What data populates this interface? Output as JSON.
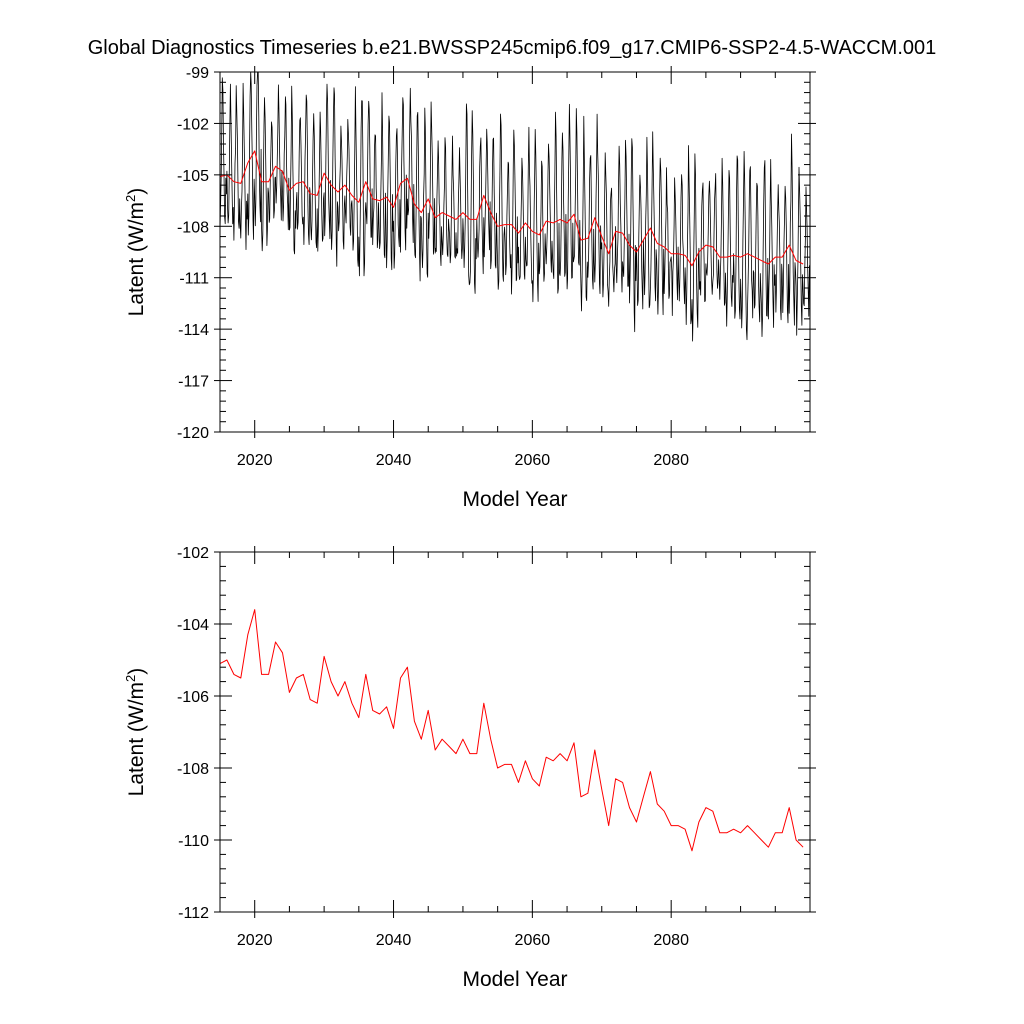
{
  "title": "Global Diagnostics Timeseries b.e21.BWSSP245cmip6.f09_g17.CMIP6-SSP2-4.5-WACCM.001",
  "colors": {
    "monthly": "#000000",
    "annual": "#ff0000",
    "frame": "#000000",
    "background": "#ffffff"
  },
  "chart_data": [
    {
      "type": "line",
      "xlabel": "Model Year",
      "ylabel": "Latent (W/m",
      "ylabel_superscript": "2",
      "ylabel_suffix": ")",
      "xlim": [
        2015,
        2100
      ],
      "ylim": [
        -120,
        -99
      ],
      "x_ticks": [
        2020,
        2040,
        2060,
        2080
      ],
      "x_tick_labels": [
        "2020",
        "2040",
        "2060",
        "2080"
      ],
      "y_ticks": [
        -99,
        -102,
        -105,
        -108,
        -111,
        -114,
        -117,
        -120
      ],
      "y_tick_labels": [
        "-99",
        "-102",
        "-105",
        "-108",
        "-111",
        "-114",
        "-117",
        "-120"
      ],
      "grid": false,
      "series": [
        {
          "key": "monthly",
          "sampling": "monthly",
          "start_year": 2015,
          "end_year": 2100,
          "range_approx": [
            -117.0,
            -99.0
          ]
        },
        {
          "key": "annual",
          "sampling": "annual",
          "source": "annual_means"
        }
      ]
    },
    {
      "type": "line",
      "xlabel": "Model Year",
      "ylabel": "Latent (W/m",
      "ylabel_superscript": "2",
      "ylabel_suffix": ")",
      "xlim": [
        2015,
        2100
      ],
      "ylim": [
        -112,
        -102
      ],
      "x_ticks": [
        2020,
        2040,
        2060,
        2080
      ],
      "x_tick_labels": [
        "2020",
        "2040",
        "2060",
        "2080"
      ],
      "y_ticks": [
        -102,
        -104,
        -106,
        -108,
        -110,
        -112
      ],
      "y_tick_labels": [
        "-102",
        "-104",
        "-106",
        "-108",
        "-110",
        "-112"
      ],
      "grid": false,
      "series": [
        {
          "key": "annual",
          "sampling": "annual",
          "source": "annual_means"
        }
      ]
    }
  ],
  "annual_means": {
    "x": [
      2015,
      2016,
      2017,
      2018,
      2019,
      2020,
      2021,
      2022,
      2023,
      2024,
      2025,
      2026,
      2027,
      2028,
      2029,
      2030,
      2031,
      2032,
      2033,
      2034,
      2035,
      2036,
      2037,
      2038,
      2039,
      2040,
      2041,
      2042,
      2043,
      2044,
      2045,
      2046,
      2047,
      2048,
      2049,
      2050,
      2051,
      2052,
      2053,
      2054,
      2055,
      2056,
      2057,
      2058,
      2059,
      2060,
      2061,
      2062,
      2063,
      2064,
      2065,
      2066,
      2067,
      2068,
      2069,
      2070,
      2071,
      2072,
      2073,
      2074,
      2075,
      2076,
      2077,
      2078,
      2079,
      2080,
      2081,
      2082,
      2083,
      2084,
      2085,
      2086,
      2087,
      2088,
      2089,
      2090,
      2091,
      2092,
      2093,
      2094,
      2095,
      2096,
      2097,
      2098,
      2099
    ],
    "y": [
      -105.1,
      -105.0,
      -105.4,
      -105.5,
      -104.3,
      -103.6,
      -105.4,
      -105.4,
      -104.5,
      -104.8,
      -105.9,
      -105.5,
      -105.4,
      -106.1,
      -106.2,
      -104.9,
      -105.6,
      -106.0,
      -105.6,
      -106.2,
      -106.6,
      -105.4,
      -106.4,
      -106.5,
      -106.3,
      -106.9,
      -105.5,
      -105.2,
      -106.7,
      -107.2,
      -106.4,
      -107.5,
      -107.2,
      -107.4,
      -107.6,
      -107.2,
      -107.6,
      -107.6,
      -106.2,
      -107.2,
      -108.0,
      -107.9,
      -107.9,
      -108.4,
      -107.8,
      -108.3,
      -108.5,
      -107.7,
      -107.8,
      -107.6,
      -107.8,
      -107.3,
      -108.8,
      -108.7,
      -107.5,
      -108.6,
      -109.6,
      -108.3,
      -108.4,
      -109.1,
      -109.5,
      -108.8,
      -108.1,
      -109.0,
      -109.2,
      -109.6,
      -109.6,
      -109.7,
      -110.3,
      -109.5,
      -109.1,
      -109.2,
      -109.8,
      -109.8,
      -109.7,
      -109.8,
      -109.6,
      -109.8,
      -110.0,
      -110.2,
      -109.8,
      -109.8,
      -109.1,
      -110.0,
      -110.2
    ]
  }
}
